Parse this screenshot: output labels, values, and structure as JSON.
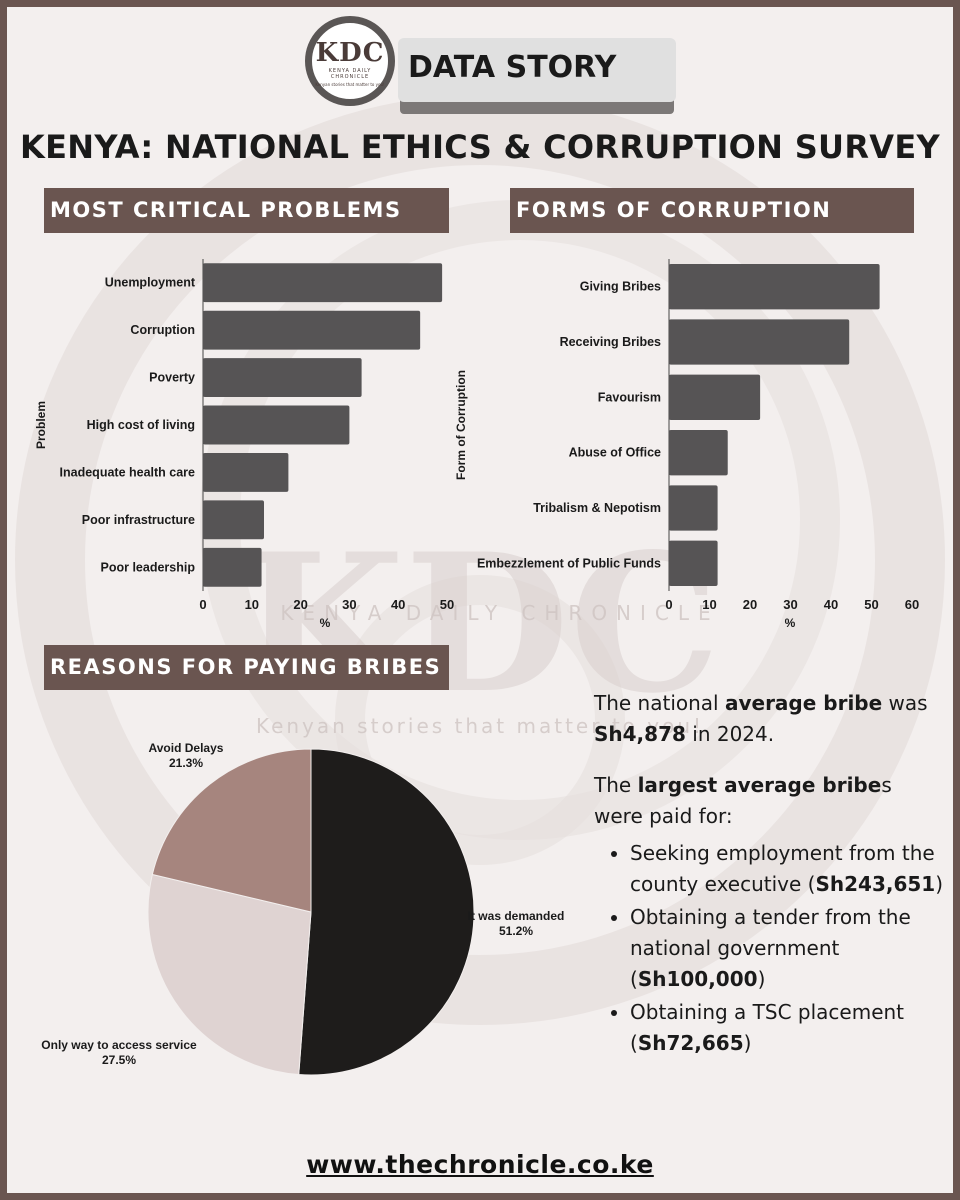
{
  "brand": {
    "logo": "KDC",
    "name": "KENYA DAILY CHRONICLE",
    "tagline": "Kenyan stories that matter to you!"
  },
  "header_tag": "DATA STORY",
  "title": "KENYA: NATIONAL ETHICS & CORRUPTION SURVEY",
  "sections": {
    "problems": "MOST CRITICAL PROBLEMS",
    "forms": "FORMS OF CORRUPTION",
    "reasons": "REASONS FOR PAYING BRIBES"
  },
  "colors": {
    "bar": "#565455",
    "header": "#6a5550",
    "pie_demanded": "#1e1c1b",
    "pie_only_way": "#dfd3d2",
    "pie_avoid_delays": "#a6857e"
  },
  "chart_data": [
    {
      "type": "bar",
      "orientation": "horizontal",
      "categories": [
        "Unemployment",
        "Corruption",
        "Poverty",
        "High cost of living",
        "Inadequate health care",
        "Poor infrastructure",
        "Poor leadership"
      ],
      "values": [
        49,
        44.5,
        32.5,
        30,
        17.5,
        12.5,
        12
      ],
      "xlabel": "%",
      "ylabel": "Problem",
      "xlim": [
        0,
        50
      ],
      "xticks": [
        0,
        10,
        20,
        30,
        40,
        50
      ],
      "grid": false
    },
    {
      "type": "bar",
      "orientation": "horizontal",
      "categories": [
        "Giving Bribes",
        "Receiving Bribes",
        "Favourism",
        "Abuse of Office",
        "Tribalism & Nepotism",
        "Embezzlement of Public Funds"
      ],
      "values": [
        52,
        44.5,
        22.5,
        14.5,
        12,
        12
      ],
      "xlabel": "%",
      "ylabel": "Form of Corruption",
      "xlim": [
        0,
        60
      ],
      "xticks": [
        0,
        10,
        20,
        30,
        40,
        50,
        60
      ],
      "grid": false
    },
    {
      "type": "pie",
      "slices": [
        {
          "label": "It was demanded",
          "value": 51.2,
          "display": "51.2%"
        },
        {
          "label": "Only way to access service",
          "value": 27.5,
          "display": "27.5%"
        },
        {
          "label": "Avoid Delays",
          "value": 21.3,
          "display": "21.3%"
        }
      ]
    }
  ],
  "facts": {
    "avg_pre": "The national ",
    "avg_bold": "average bribe",
    "avg_mid": " was ",
    "avg_amount": "Sh4,878",
    "avg_post": " in 2024.",
    "largest_pre": "The ",
    "largest_bold": "largest average bribe",
    "largest_post": "s were paid for:",
    "items": [
      {
        "text": "Seeking employment from the county executive",
        "amount": "Sh243,651"
      },
      {
        "text": "Obtaining a tender from the national government",
        "amount": "Sh100,000"
      },
      {
        "text": "Obtaining a TSC placement",
        "amount": "Sh72,665"
      }
    ]
  },
  "watermark": {
    "logo": "KDC",
    "name": "KENYA DAILY CHRONICLE",
    "tagline": "Kenyan stories that matter to you!"
  },
  "footer": "www.thechronicle.co.ke"
}
